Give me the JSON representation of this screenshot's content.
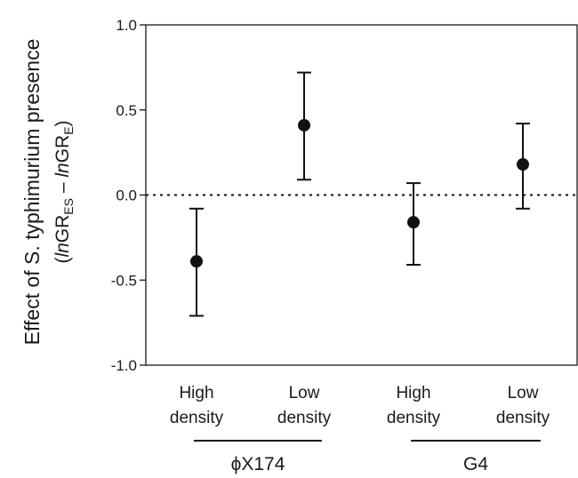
{
  "chart_data": {
    "type": "scatter",
    "ylabel": "Effect of S. typhimurium presence",
    "ylabel_formula": {
      "open": "(",
      "ln1": "ln",
      "gr1": "GR",
      "sub1": "ES",
      "minus": " – ",
      "ln2": "ln",
      "gr2": "GR",
      "sub2": "E",
      "close": ")"
    },
    "ylim": [
      -1.0,
      1.0
    ],
    "yticks": [
      "1.0",
      "0.5",
      "0.0",
      "-0.5",
      "-1.0"
    ],
    "ytick_values": [
      1.0,
      0.5,
      0.0,
      -0.5,
      -1.0
    ],
    "reference_line": {
      "y": 0.0,
      "style": "dotted"
    },
    "categories": [
      {
        "line1": "High",
        "line2": "density"
      },
      {
        "line1": "Low",
        "line2": "density"
      },
      {
        "line1": "High",
        "line2": "density"
      },
      {
        "line1": "Low",
        "line2": "density"
      }
    ],
    "groups": [
      {
        "label": "ϕX174",
        "members": [
          0,
          1
        ]
      },
      {
        "label": "G4",
        "members": [
          2,
          3
        ]
      }
    ],
    "points": [
      {
        "y": -0.39,
        "err_low": -0.71,
        "err_high": -0.08
      },
      {
        "y": 0.41,
        "err_low": 0.09,
        "err_high": 0.72
      },
      {
        "y": -0.16,
        "err_low": -0.41,
        "err_high": 0.07
      },
      {
        "y": 0.18,
        "err_low": -0.08,
        "err_high": 0.42
      }
    ],
    "grid": false,
    "colors": {
      "marker": "#111111",
      "axis": "#1a1a1a"
    }
  }
}
